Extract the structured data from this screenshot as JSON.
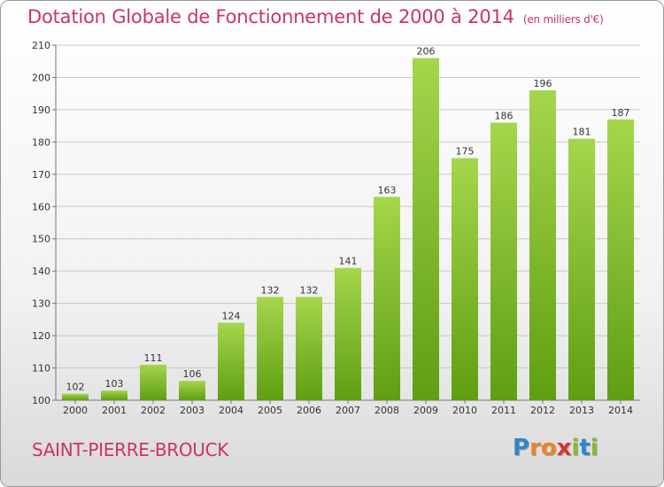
{
  "header": {
    "title": "Dotation Globale de Fonctionnement de 2000 à 2014",
    "subtitle": "(en milliers d'€)"
  },
  "footer": {
    "commune": "SAINT-PIERRE-BROUCK",
    "logo_letters": [
      {
        "ch": "P",
        "color": "#2f86c9"
      },
      {
        "ch": "r",
        "color": "#e8842b"
      },
      {
        "ch": "o",
        "color": "#e8842b"
      },
      {
        "ch": "x",
        "color": "#d8332e"
      },
      {
        "ch": "i",
        "color": "#8ab833"
      },
      {
        "ch": "t",
        "color": "#2f86c9"
      },
      {
        "ch": "i",
        "color": "#8ab833"
      }
    ]
  },
  "colors": {
    "bar_top": "#a5d64c",
    "bar_bottom": "#5f9e12",
    "grid": "#c8c8c8",
    "text": "#333333",
    "accent": "#cc3366"
  },
  "chart_data": {
    "type": "bar",
    "title": "Dotation Globale de Fonctionnement de 2000 à 2014",
    "subtitle": "(en milliers d'€)",
    "categories": [
      "2000",
      "2001",
      "2002",
      "2003",
      "2004",
      "2005",
      "2006",
      "2007",
      "2008",
      "2009",
      "2010",
      "2011",
      "2012",
      "2013",
      "2014"
    ],
    "values": [
      102,
      103,
      111,
      106,
      124,
      132,
      132,
      141,
      163,
      206,
      175,
      186,
      196,
      181,
      187
    ],
    "ylim": [
      100,
      210
    ],
    "yticks": [
      100,
      110,
      120,
      130,
      140,
      150,
      160,
      170,
      180,
      190,
      200,
      210
    ],
    "grid": true,
    "xlabel": "",
    "ylabel": ""
  }
}
